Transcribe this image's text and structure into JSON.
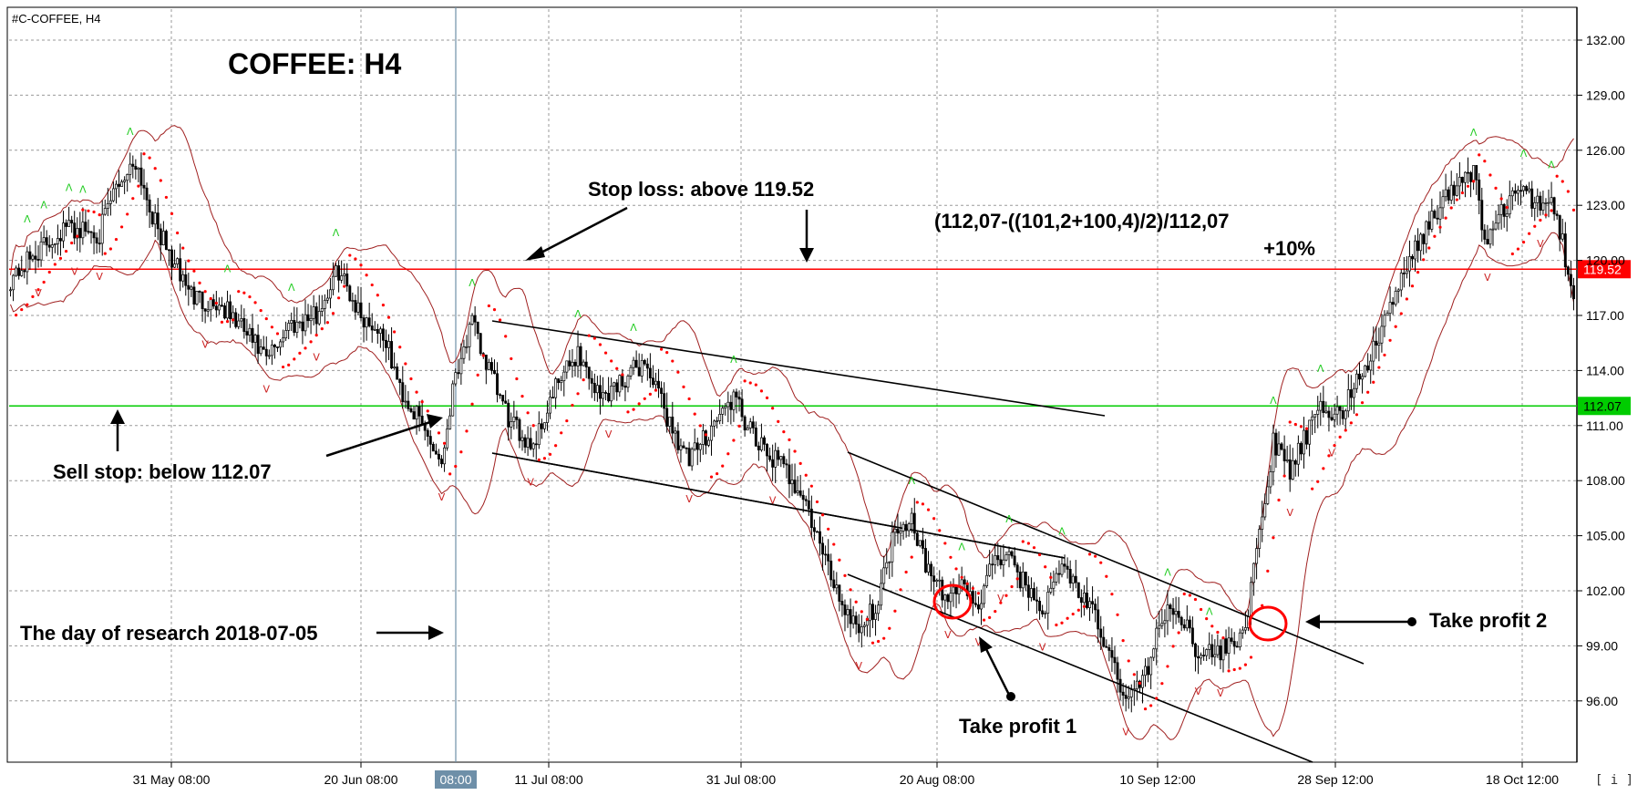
{
  "window": {
    "title": "#C-COFFEE, H4"
  },
  "chart_title": "COFFEE: H4",
  "price_axis": {
    "ticks": [
      "132.00",
      "129.00",
      "126.00",
      "123.00",
      "120.00",
      "117.00",
      "114.00",
      "111.00",
      "108.00",
      "105.00",
      "102.00",
      "99.00",
      "96.00"
    ],
    "markers": [
      {
        "label": "119.52",
        "value": 119.52,
        "color": "#ff0000"
      },
      {
        "label": "112.07",
        "value": 112.07,
        "color": "#00cc00"
      }
    ]
  },
  "time_axis": {
    "labels": [
      "31 May 08:00",
      "20 Jun 08:00",
      "08:00",
      "11 Jul 08:00",
      "31 Jul 08:00",
      "20 Aug 08:00",
      "10 Sep 12:00",
      "28 Sep 12:00",
      "18 Oct 12:00"
    ],
    "highlight_label": "08:00"
  },
  "annotations": {
    "stop_loss": "Stop loss: above  119.52",
    "sell_stop": "Sell stop: below 112.07",
    "research_day": "The day of research 2018-07-05",
    "formula": "(112,07-((101,2+100,4)/2)/112,07",
    "gain": "+10%",
    "take_profit_1": "Take profit 1",
    "take_profit_2": "Take profit 2"
  },
  "corner_button": "[ i ]",
  "colors": {
    "resistance": "#ff0000",
    "support": "#00cc00",
    "bollinger": "#a02020",
    "sar": "#ff0000",
    "bull": "#ffffff",
    "bear": "#000000",
    "fractal_up": "#22cc22",
    "fractal_down": "#cc2222"
  },
  "chart_data": {
    "type": "candlestick",
    "symbol": "#C-COFFEE",
    "timeframe": "H4",
    "ylim": [
      94.0,
      133.5
    ],
    "horizontal_levels": [
      119.52,
      112.07
    ],
    "research_date": "2018-07-05",
    "indicators": [
      "Bollinger Bands",
      "Parabolic SAR",
      "Fractals"
    ],
    "close_path": [
      [
        0,
        119.0
      ],
      [
        10,
        120.5
      ],
      [
        20,
        121.8
      ],
      [
        32,
        121.5
      ],
      [
        38,
        124.0
      ],
      [
        45,
        125.5
      ],
      [
        52,
        122.0
      ],
      [
        58,
        120.0
      ],
      [
        66,
        118.0
      ],
      [
        76,
        117.5
      ],
      [
        85,
        116.0
      ],
      [
        92,
        114.5
      ],
      [
        100,
        116.5
      ],
      [
        110,
        117.0
      ],
      [
        118,
        119.5
      ],
      [
        126,
        117.0
      ],
      [
        134,
        116.0
      ],
      [
        140,
        113.0
      ],
      [
        148,
        111.0
      ],
      [
        155,
        109.0
      ],
      [
        160,
        114.0
      ],
      [
        166,
        116.5
      ],
      [
        172,
        114.0
      ],
      [
        180,
        111.0
      ],
      [
        188,
        110.0
      ],
      [
        196,
        113.0
      ],
      [
        204,
        115.0
      ],
      [
        212,
        112.5
      ],
      [
        220,
        113.5
      ],
      [
        228,
        114.5
      ],
      [
        236,
        111.5
      ],
      [
        244,
        109.0
      ],
      [
        252,
        111.0
      ],
      [
        260,
        112.5
      ],
      [
        268,
        110.0
      ],
      [
        276,
        109.0
      ],
      [
        284,
        107.5
      ],
      [
        292,
        104.0
      ],
      [
        300,
        101.0
      ],
      [
        306,
        100.0
      ],
      [
        312,
        101.5
      ],
      [
        318,
        105.5
      ],
      [
        324,
        106.0
      ],
      [
        330,
        103.0
      ],
      [
        336,
        101.5
      ],
      [
        342,
        102.5
      ],
      [
        348,
        101.0
      ],
      [
        354,
        104.0
      ],
      [
        360,
        103.5
      ],
      [
        366,
        102.0
      ],
      [
        372,
        101.0
      ],
      [
        378,
        103.5
      ],
      [
        384,
        102.0
      ],
      [
        390,
        100.5
      ],
      [
        396,
        98.0
      ],
      [
        402,
        96.0
      ],
      [
        408,
        97.5
      ],
      [
        414,
        100.5
      ],
      [
        420,
        101.0
      ],
      [
        426,
        99.0
      ],
      [
        432,
        98.5
      ],
      [
        438,
        99.0
      ],
      [
        444,
        100.0
      ],
      [
        448,
        104.0
      ],
      [
        454,
        110.0
      ],
      [
        460,
        108.5
      ],
      [
        466,
        110.5
      ],
      [
        472,
        112.0
      ],
      [
        478,
        111.5
      ],
      [
        484,
        113.5
      ],
      [
        490,
        115.0
      ],
      [
        496,
        117.5
      ],
      [
        502,
        119.5
      ],
      [
        508,
        121.5
      ],
      [
        514,
        123.0
      ],
      [
        520,
        124.0
      ],
      [
        526,
        125.0
      ],
      [
        530,
        121.0
      ],
      [
        536,
        122.5
      ],
      [
        542,
        124.0
      ],
      [
        548,
        123.0
      ],
      [
        554,
        123.5
      ],
      [
        558,
        121.0
      ],
      [
        562,
        117.5
      ]
    ]
  }
}
